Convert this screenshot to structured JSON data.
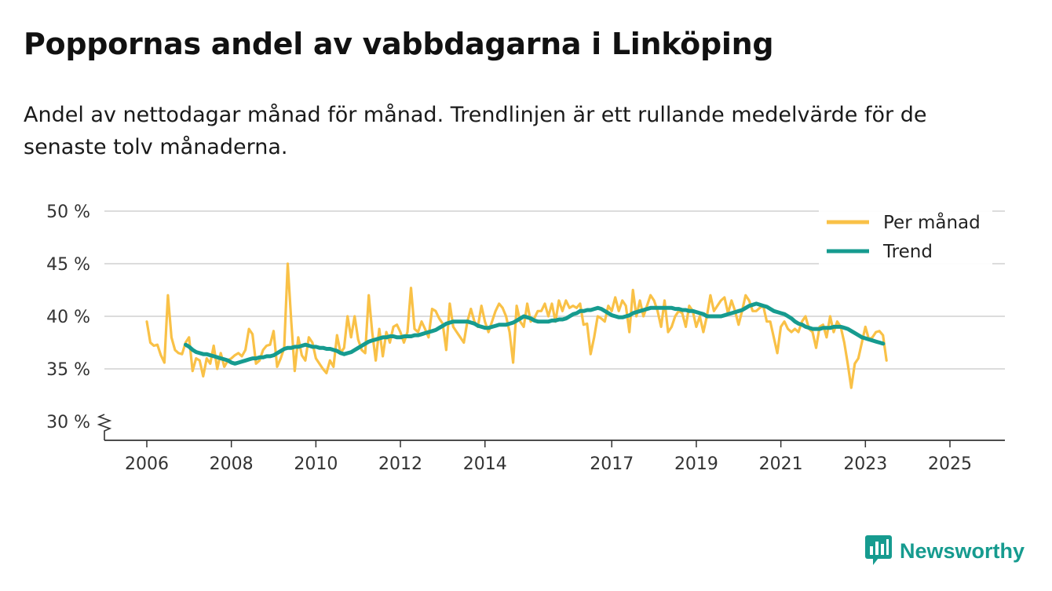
{
  "chart_data": {
    "type": "line",
    "title": "Poppornas andel av vabbdagarna i Linköping",
    "subtitle": "Andel av nettodagar månad för månad. Trendlinjen är ett rullande medelvärde för de senaste tolv månaderna.",
    "xlabel": "",
    "ylabel": "",
    "y_ticks": [
      30,
      35,
      40,
      45,
      50
    ],
    "y_tick_labels": [
      "30 %",
      "35 %",
      "40 %",
      "45 %",
      "50 %"
    ],
    "ylim": [
      30,
      50
    ],
    "y_axis_break": true,
    "x_ticks": [
      2006,
      2008,
      2010,
      2012,
      2014,
      2017,
      2019,
      2021,
      2023,
      2025
    ],
    "xlim": [
      2005.5,
      2026.3
    ],
    "legend": {
      "position": "top-right",
      "entries": [
        "Per månad",
        "Trend"
      ]
    },
    "series": [
      {
        "name": "Per månad",
        "color": "#F9C147",
        "x_start": 2006.0,
        "step": 0.08333,
        "values": [
          39.5,
          37.5,
          37.2,
          37.3,
          36.3,
          35.6,
          42.0,
          38.0,
          36.8,
          36.5,
          36.4,
          37.5,
          38.0,
          34.8,
          36.0,
          35.8,
          34.3,
          36.0,
          35.5,
          37.2,
          35.0,
          36.5,
          35.2,
          35.8,
          36.0,
          36.3,
          36.5,
          36.2,
          36.8,
          38.8,
          38.3,
          35.5,
          35.8,
          36.8,
          37.2,
          37.3,
          38.6,
          35.2,
          36.0,
          37.0,
          45.0,
          39.5,
          34.8,
          38.0,
          36.3,
          35.8,
          38.0,
          37.5,
          36.0,
          35.5,
          35.0,
          34.6,
          35.8,
          35.2,
          38.2,
          36.5,
          37.0,
          40.0,
          38.0,
          40.0,
          37.8,
          36.8,
          36.5,
          42.0,
          38.5,
          35.8,
          38.8,
          36.2,
          38.5,
          37.5,
          39.0,
          39.2,
          38.5,
          37.5,
          38.5,
          42.7,
          38.8,
          38.5,
          39.5,
          38.8,
          38.0,
          40.7,
          40.5,
          39.8,
          39.3,
          36.8,
          41.2,
          39.0,
          38.5,
          38.0,
          37.5,
          39.5,
          40.7,
          39.5,
          39.0,
          41.0,
          39.5,
          38.5,
          39.5,
          40.5,
          41.2,
          40.8,
          40.0,
          38.5,
          35.6,
          41.0,
          39.5,
          39.0,
          41.2,
          39.5,
          39.8,
          40.5,
          40.5,
          41.2,
          40.0,
          41.2,
          39.5,
          41.5,
          40.5,
          41.5,
          40.8,
          41.0,
          40.8,
          41.2,
          39.2,
          39.3,
          36.4,
          38.0,
          40.0,
          39.8,
          39.5,
          41.0,
          40.5,
          41.8,
          40.5,
          41.5,
          41.0,
          38.5,
          42.5,
          40.0,
          41.5,
          40.0,
          41.0,
          42.0,
          41.5,
          40.5,
          39.0,
          41.5,
          38.5,
          39.0,
          40.0,
          40.5,
          40.3,
          39.0,
          41.0,
          40.5,
          39.0,
          40.0,
          38.5,
          40.0,
          42.0,
          40.5,
          41.0,
          41.5,
          41.8,
          40.3,
          41.5,
          40.5,
          39.2,
          40.5,
          42.0,
          41.5,
          40.5,
          40.5,
          40.8,
          41.0,
          39.5,
          39.5,
          38.0,
          36.5,
          39.0,
          39.5,
          38.8,
          38.5,
          38.8,
          38.5,
          39.5,
          40.0,
          38.8,
          38.5,
          37.0,
          39.0,
          39.2,
          38.0,
          40.0,
          38.5,
          39.5,
          39.0,
          37.5,
          35.5,
          33.2,
          35.5,
          36.0,
          37.5,
          39.0,
          37.8,
          38.0,
          38.5,
          38.6,
          38.2,
          35.8
        ]
      },
      {
        "name": "Trend",
        "color": "#169B8F",
        "x_start": 2006.92,
        "step": 0.08333,
        "values": [
          37.3,
          37.1,
          36.8,
          36.6,
          36.5,
          36.4,
          36.4,
          36.3,
          36.2,
          36.1,
          36.0,
          35.9,
          35.8,
          35.6,
          35.5,
          35.6,
          35.7,
          35.8,
          35.9,
          36.0,
          36.0,
          36.1,
          36.1,
          36.2,
          36.2,
          36.3,
          36.5,
          36.7,
          36.9,
          37.0,
          37.0,
          37.1,
          37.1,
          37.2,
          37.3,
          37.2,
          37.1,
          37.1,
          37.0,
          37.0,
          36.9,
          36.9,
          36.8,
          36.7,
          36.5,
          36.4,
          36.5,
          36.6,
          36.8,
          37.0,
          37.2,
          37.4,
          37.6,
          37.7,
          37.8,
          37.9,
          38.0,
          38.0,
          38.1,
          38.1,
          38.0,
          38.0,
          38.1,
          38.1,
          38.1,
          38.2,
          38.2,
          38.3,
          38.4,
          38.5,
          38.6,
          38.7,
          38.9,
          39.1,
          39.3,
          39.4,
          39.5,
          39.5,
          39.5,
          39.5,
          39.5,
          39.4,
          39.3,
          39.1,
          39.0,
          38.9,
          38.9,
          39.0,
          39.1,
          39.2,
          39.2,
          39.2,
          39.3,
          39.4,
          39.6,
          39.8,
          40.0,
          39.9,
          39.8,
          39.6,
          39.5,
          39.5,
          39.5,
          39.5,
          39.6,
          39.6,
          39.7,
          39.7,
          39.8,
          40.0,
          40.2,
          40.3,
          40.5,
          40.5,
          40.6,
          40.6,
          40.7,
          40.8,
          40.7,
          40.5,
          40.3,
          40.1,
          40.0,
          39.9,
          39.9,
          40.0,
          40.1,
          40.3,
          40.4,
          40.5,
          40.6,
          40.7,
          40.8,
          40.8,
          40.8,
          40.8,
          40.8,
          40.8,
          40.8,
          40.7,
          40.7,
          40.6,
          40.6,
          40.5,
          40.5,
          40.4,
          40.3,
          40.2,
          40.0,
          40.0,
          40.0,
          40.0,
          40.0,
          40.1,
          40.2,
          40.3,
          40.4,
          40.5,
          40.6,
          40.8,
          41.0,
          41.1,
          41.2,
          41.1,
          41.0,
          40.9,
          40.7,
          40.5,
          40.4,
          40.3,
          40.2,
          40.0,
          39.8,
          39.5,
          39.3,
          39.2,
          39.0,
          38.9,
          38.8,
          38.8,
          38.8,
          38.9,
          38.9,
          38.9,
          39.0,
          39.0,
          39.0,
          38.9,
          38.8,
          38.6,
          38.4,
          38.2,
          38.0,
          37.9,
          37.8,
          37.7,
          37.6,
          37.5,
          37.4
        ]
      }
    ]
  },
  "branding": {
    "name": "Newsworthy",
    "color": "#169B8F"
  }
}
